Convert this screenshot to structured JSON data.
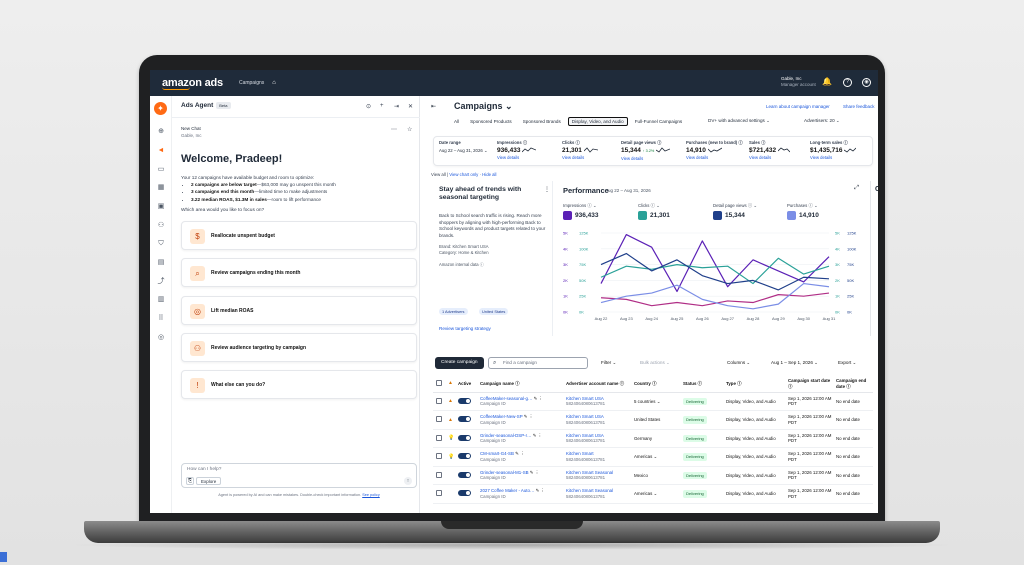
{
  "nav": {
    "logo": "amazon ads",
    "link": "Campaigns",
    "account_name": "Gable, Inc",
    "account_sub": "Manager account"
  },
  "agent": {
    "title": "Ads Agent",
    "beta": "Beta",
    "chat_title": "New Chat",
    "chat_sub": "Gable, Inc",
    "welcome": "Welcome, Pradeep!",
    "intro": "Your 12 campaigns have available budget and room to optimize:",
    "bullets": [
      {
        "bold": "2 campaigns are below target",
        "rest": "—$63,000 may go unspent this month"
      },
      {
        "bold": "3 campaigns end this month",
        "rest": "—limited time to make adjustments"
      },
      {
        "bold": "3.22 median ROAS, $1.3M in sales",
        "rest": "—room to lift performance"
      }
    ],
    "focus_q": "Which area would you like to focus on?",
    "cards": [
      "Reallocate unspent budget",
      "Review campaigns ending this month",
      "Lift median ROAS",
      "Review audience targeting by campaign",
      "What else can you do?"
    ],
    "input_placeholder": "How can I help?",
    "explore": "Explore",
    "disclaimer": "Agent is powered by AI and can make mistakes. Double-check important information.",
    "disclaimer_link": "See policy"
  },
  "campaigns": {
    "title": "Campaigns",
    "learn_link": "Learn about campaign manager",
    "feedback_link": "Share feedback",
    "tabs": [
      "All",
      "Sponsored Products",
      "Sponsored Brands",
      "Display, Video, and Audio",
      "Full-Funnel Campaigns"
    ],
    "dsp_select": "DV+ with advanced settings",
    "advertisers": "Advertisers: 20",
    "date_label": "Date range",
    "date_value": "Aug 22 – Aug 31, 2026",
    "metrics": [
      {
        "label": "Impressions",
        "value": "936,433",
        "delta": "",
        "link": "View details"
      },
      {
        "label": "Clicks",
        "value": "21,301",
        "delta": "",
        "link": "View details"
      },
      {
        "label": "Detail page views",
        "value": "15,344",
        "delta": "↑ 3.2%",
        "link": "View details"
      },
      {
        "label": "Purchases (new to brand)",
        "value": "14,910",
        "delta": "",
        "link": "View details"
      },
      {
        "label": "Sales",
        "value": "$721,432",
        "delta": "",
        "link": "View details"
      },
      {
        "label": "Long-term sales",
        "value": "$1,435,716",
        "delta": "",
        "link": "View details"
      }
    ],
    "view_all": "View all",
    "chart_only": "View chart only",
    "hide_all": "Hide all"
  },
  "insight": {
    "title": "Stay ahead of trends with seasonal targeting",
    "body": "Back to School search traffic is rising. Reach more shoppers by aligning with high-performing Back to School keywords and product targets related to your brands.",
    "brand": "Brand: Kitchen Smart USA",
    "category": "Category: Home & Kitchen",
    "source": "Amazon internal data",
    "chip1": "1 Advertisers",
    "chip2": "United States",
    "link": "Review targeting strategy"
  },
  "performance": {
    "title": "Performance",
    "date": "Aug 22 – Aug 31, 2026",
    "metrics": [
      {
        "label": "Impressions",
        "value": "936,433",
        "color": "#5b21b6"
      },
      {
        "label": "Clicks",
        "value": "21,301",
        "color": "#2aa198"
      },
      {
        "label": "Detail page views",
        "value": "15,344",
        "color": "#1f3f8a"
      },
      {
        "label": "Purchases",
        "value": "14,910",
        "color": "#7b8ee6"
      }
    ],
    "side_card": "C"
  },
  "chart_data": {
    "type": "line",
    "x": [
      "Aug 22",
      "Aug 23",
      "Aug 24",
      "Aug 25",
      "Aug 26",
      "Aug 27",
      "Aug 28",
      "Aug 29",
      "Aug 30",
      "Aug 31"
    ],
    "y_left_ticks": [
      "5K",
      "4K",
      "3K",
      "2K",
      "1K",
      "0K"
    ],
    "y_left_ticks2": [
      "125K",
      "100K",
      "75K",
      "50K",
      "25K",
      "0K"
    ],
    "y_right_ticks": [
      "5K",
      "4K",
      "3K",
      "2K",
      "1K",
      "0K"
    ],
    "y_right_ticks2": [
      "125K",
      "100K",
      "75K",
      "50K",
      "25K",
      "0K"
    ],
    "y_left_ticks_colors": [
      "#5b21b6",
      "#2aa198"
    ],
    "ylim": [
      0,
      5
    ],
    "series": [
      {
        "values": [
          1.8,
          4.9,
          4.1,
          1.3,
          4.5,
          1.6,
          3.3,
          2.6,
          1.9,
          3.5
        ],
        "color": "#5b21b6"
      },
      {
        "values": [
          2.2,
          2.9,
          2.7,
          3.0,
          2.8,
          2.9,
          1.8,
          3.4,
          2.4,
          2.9
        ],
        "color": "#2aa198"
      },
      {
        "values": [
          3.0,
          3.7,
          2.6,
          3.3,
          2.3,
          1.8,
          2.0,
          1.4,
          2.2,
          2.1
        ],
        "color": "#1f3f8a"
      },
      {
        "values": [
          0.9,
          0.8,
          0.4,
          0.6,
          0.4,
          0.7,
          0.6,
          1.1,
          1.0,
          1.2
        ],
        "color": "#b02e86"
      },
      {
        "values": [
          0.6,
          1.0,
          1.2,
          1.7,
          0.8,
          0.4,
          0.2,
          0.5,
          1.8,
          1.6
        ],
        "color": "#7b8ee6"
      }
    ]
  },
  "table": {
    "create": "Create campaign",
    "find_placeholder": "Find a campaign",
    "filter": "Filter",
    "bulk": "Bulk actions",
    "columns": "Columns",
    "date": "Aug 1 – Sep 1, 2026",
    "export": "Export",
    "headers": [
      "",
      "",
      "Active",
      "Campaign name",
      "Advertiser account name",
      "Country",
      "Status",
      "Type",
      "Campaign start date",
      "Campaign end date"
    ],
    "rows": [
      {
        "name": "CoffeeMaker-seasonal-g…",
        "sub": "Campaign ID",
        "adv": "Kitchen Smart USA",
        "adv_id": "5824064080613781",
        "country": "5 countries",
        "status": "Delivering",
        "type": "Display, Video, and Audio",
        "start": "Sep 1, 2026 12:00 AM PDT",
        "end": "No end date",
        "flag": "warn"
      },
      {
        "name": "CoffeeMaker-New-SP",
        "sub": "Campaign ID",
        "adv": "Kitchen Smart USA",
        "adv_id": "5824064080613781",
        "country": "United States",
        "status": "Delivering",
        "type": "Display, Video, and Audio",
        "start": "Sep 1, 2026 12:00 AM PDT",
        "end": "No end date",
        "flag": "warn"
      },
      {
        "name": "Grinder-seasonal-DSP-r…",
        "sub": "Campaign ID",
        "adv": "Kitchen Smart USA",
        "adv_id": "5824064080613781",
        "country": "Germany",
        "status": "Delivering",
        "type": "Display, Video, and Audio",
        "start": "Sep 1, 2026 12:00 AM PDT",
        "end": "No end date",
        "flag": "bulb"
      },
      {
        "name": "CM-smart-G4-SB",
        "sub": "Campaign ID",
        "adv": "Kitchen Smart",
        "adv_id": "5824064080613781",
        "country": "Americas",
        "status": "Delivering",
        "type": "Display, Video, and Audio",
        "start": "Sep 1, 2026 12:00 AM PDT",
        "end": "No end date",
        "flag": "bulb"
      },
      {
        "name": "Grinder-seasonal-M1-SB",
        "sub": "Campaign ID",
        "adv": "Kitchen Smart Seasonal",
        "adv_id": "5824064080613781",
        "country": "Mexico",
        "status": "Delivering",
        "type": "Display, Video, and Audio",
        "start": "Sep 1, 2026 12:00 AM PDT",
        "end": "No end date",
        "flag": ""
      },
      {
        "name": "2027 Coffee Maker - Auto…",
        "sub": "Campaign ID",
        "adv": "Kitchen Smart Seasonal",
        "adv_id": "5824064080613781",
        "country": "Americas",
        "status": "Delivering",
        "type": "Display, Video, and Audio",
        "start": "Sep 1, 2026 12:00 AM PDT",
        "end": "No end date",
        "flag": ""
      }
    ]
  }
}
